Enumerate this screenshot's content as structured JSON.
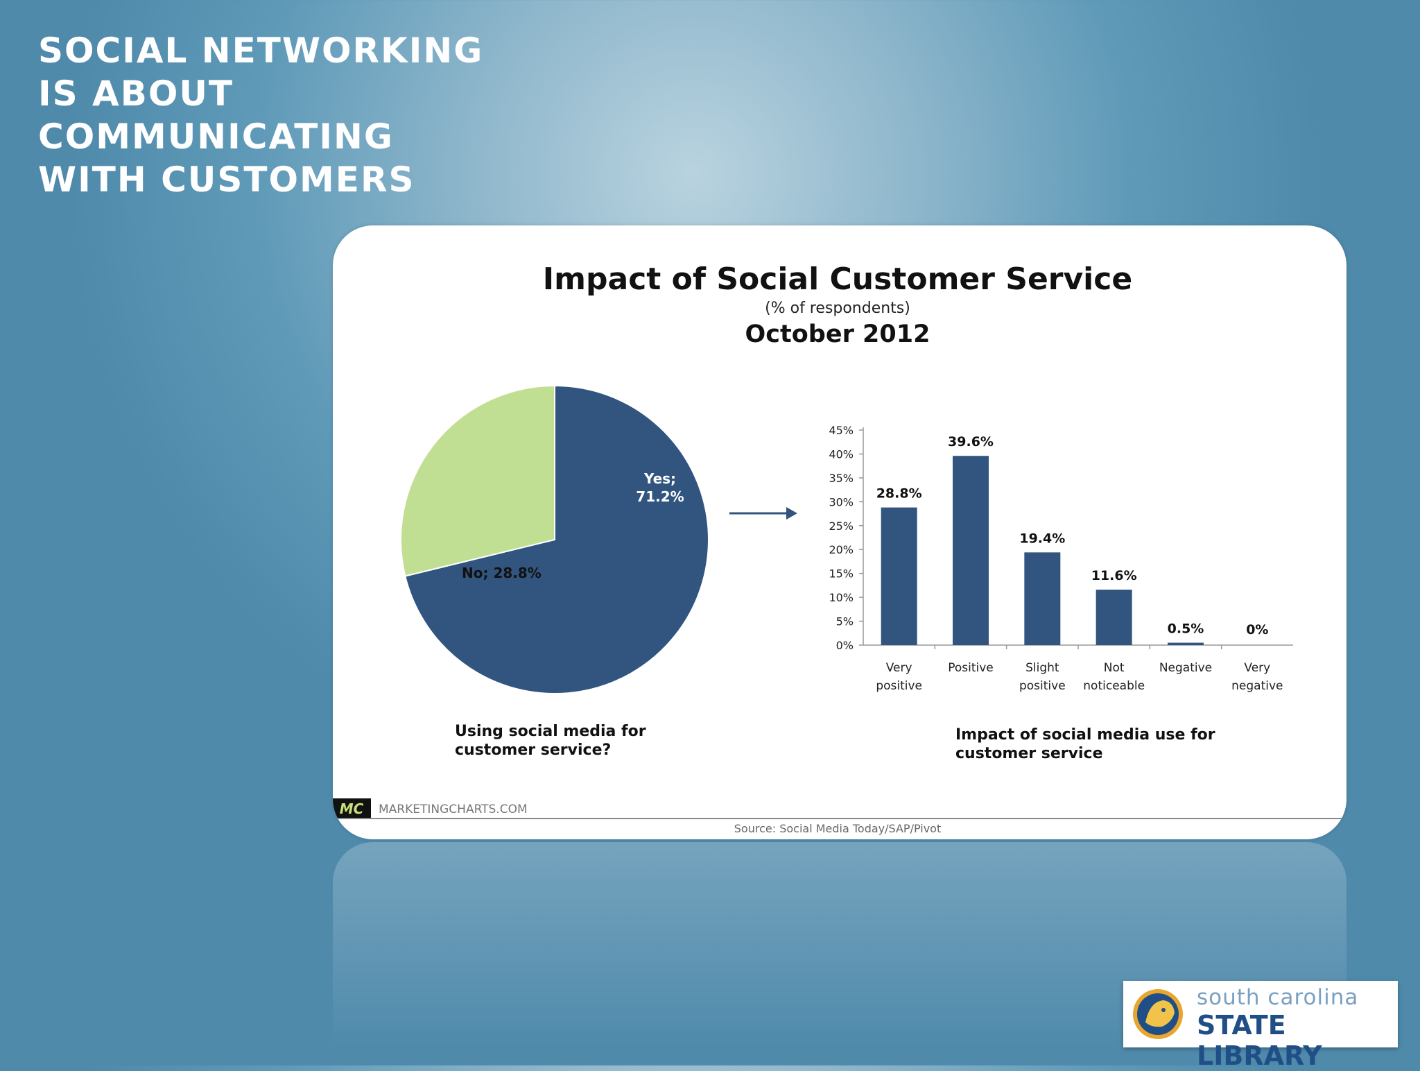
{
  "slide": {
    "title_lines": [
      "SOCIAL NETWORKING",
      "IS ABOUT",
      "COMMUNICATING",
      "WITH CUSTOMERS"
    ]
  },
  "chart_header": {
    "title": "Impact of Social Customer Service",
    "subtitle": "(% of respondents)",
    "date": "October 2012"
  },
  "footer": {
    "brand_badge": "MC",
    "brand_name": "MARKETINGCHARTS.COM",
    "source": "Source: Social Media Today/SAP/Pivot"
  },
  "logo": {
    "line1": "south carolina",
    "line2": "STATE LIBRARY"
  },
  "colors": {
    "primary": "#31557f",
    "secondary": "#c0df92",
    "text": "#1a1a1a"
  },
  "chart_data": [
    {
      "type": "pie",
      "caption_lines": [
        "Using social media for",
        "customer service?"
      ],
      "slices": [
        {
          "label": "Yes",
          "value": 71.2,
          "display": "Yes;",
          "value_text": "71.2%",
          "color": "#31557f"
        },
        {
          "label": "No",
          "value": 28.8,
          "display": "No; 28.8%",
          "value_text": "",
          "color": "#c0df92"
        }
      ]
    },
    {
      "type": "bar",
      "caption_lines": [
        "Impact of social media use for",
        "customer service"
      ],
      "categories": [
        [
          "Very",
          "positive"
        ],
        [
          "Positive"
        ],
        [
          "Slight",
          "positive"
        ],
        [
          "Not",
          "noticeable"
        ],
        [
          "Negative"
        ],
        [
          "Very",
          "negative"
        ]
      ],
      "values": [
        28.8,
        39.6,
        19.4,
        11.6,
        0.5,
        0
      ],
      "value_labels": [
        "28.8%",
        "39.6%",
        "19.4%",
        "11.6%",
        "0.5%",
        "0%"
      ],
      "ylim": [
        0,
        45
      ],
      "yticks": [
        "0%",
        "5%",
        "10%",
        "15%",
        "20%",
        "25%",
        "30%",
        "35%",
        "40%",
        "45%"
      ],
      "color": "#31557f"
    }
  ]
}
